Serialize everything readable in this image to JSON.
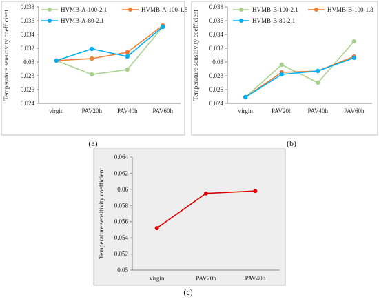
{
  "chart_data": [
    {
      "type": "line",
      "panel_label": "(a)",
      "ylabel": "Temperature sensitivity  coefficient",
      "categories": [
        "virgin",
        "PAV20h",
        "PAV40h",
        "PAV60h"
      ],
      "ylim": [
        0.024,
        0.038
      ],
      "yticks": [
        "0.024",
        "0.026",
        "0.028",
        "0.03",
        "0.032",
        "0.034",
        "0.036",
        "0.038"
      ],
      "legend_position": "top",
      "grid": false,
      "series": [
        {
          "name": "HVMB-A-100-2.1",
          "color": "#a9d18e",
          "values": [
            0.0302,
            0.0282,
            0.0289,
            0.0351
          ]
        },
        {
          "name": "HVMB-A-100-1.8",
          "color": "#ed7d31",
          "values": [
            0.0302,
            0.0305,
            0.0314,
            0.0353
          ]
        },
        {
          "name": "HVMB-A-80-2.1",
          "color": "#00b0f0",
          "values": [
            0.0302,
            0.0319,
            0.0308,
            0.0351
          ]
        }
      ]
    },
    {
      "type": "line",
      "panel_label": "(b)",
      "ylabel": "Temperature sensitivity  coefficient",
      "categories": [
        "virgin",
        "PAV20h",
        "PAV40h",
        "PAV60h"
      ],
      "ylim": [
        0.024,
        0.038
      ],
      "yticks": [
        "0.024",
        "0.026",
        "0.028",
        "0.03",
        "0.032",
        "0.034",
        "0.036",
        "0.038"
      ],
      "legend_position": "top",
      "grid": false,
      "series": [
        {
          "name": "HVMB-B-100-2.1",
          "color": "#a9d18e",
          "values": [
            0.0249,
            0.0296,
            0.027,
            0.033
          ]
        },
        {
          "name": "HVMB-B-100-1.8",
          "color": "#ed7d31",
          "values": [
            0.0249,
            0.0285,
            0.0287,
            0.0308
          ]
        },
        {
          "name": "HVMB-B-80-2.1",
          "color": "#00b0f0",
          "values": [
            0.0249,
            0.0282,
            0.0287,
            0.0306
          ]
        }
      ]
    },
    {
      "type": "line",
      "panel_label": "(c)",
      "ylabel": "Temperature sensitivity  coefficient",
      "categories": [
        "virgin",
        "PAV20h",
        "PAV40h"
      ],
      "ylim": [
        0.05,
        0.064
      ],
      "yticks": [
        "0.05",
        "0.052",
        "0.054",
        "0.056",
        "0.058",
        "0.06",
        "0.062",
        "0.064"
      ],
      "grid": false,
      "series": [
        {
          "name": "",
          "color": "#e00000",
          "values": [
            0.0552,
            0.0595,
            0.0598
          ]
        }
      ]
    }
  ]
}
